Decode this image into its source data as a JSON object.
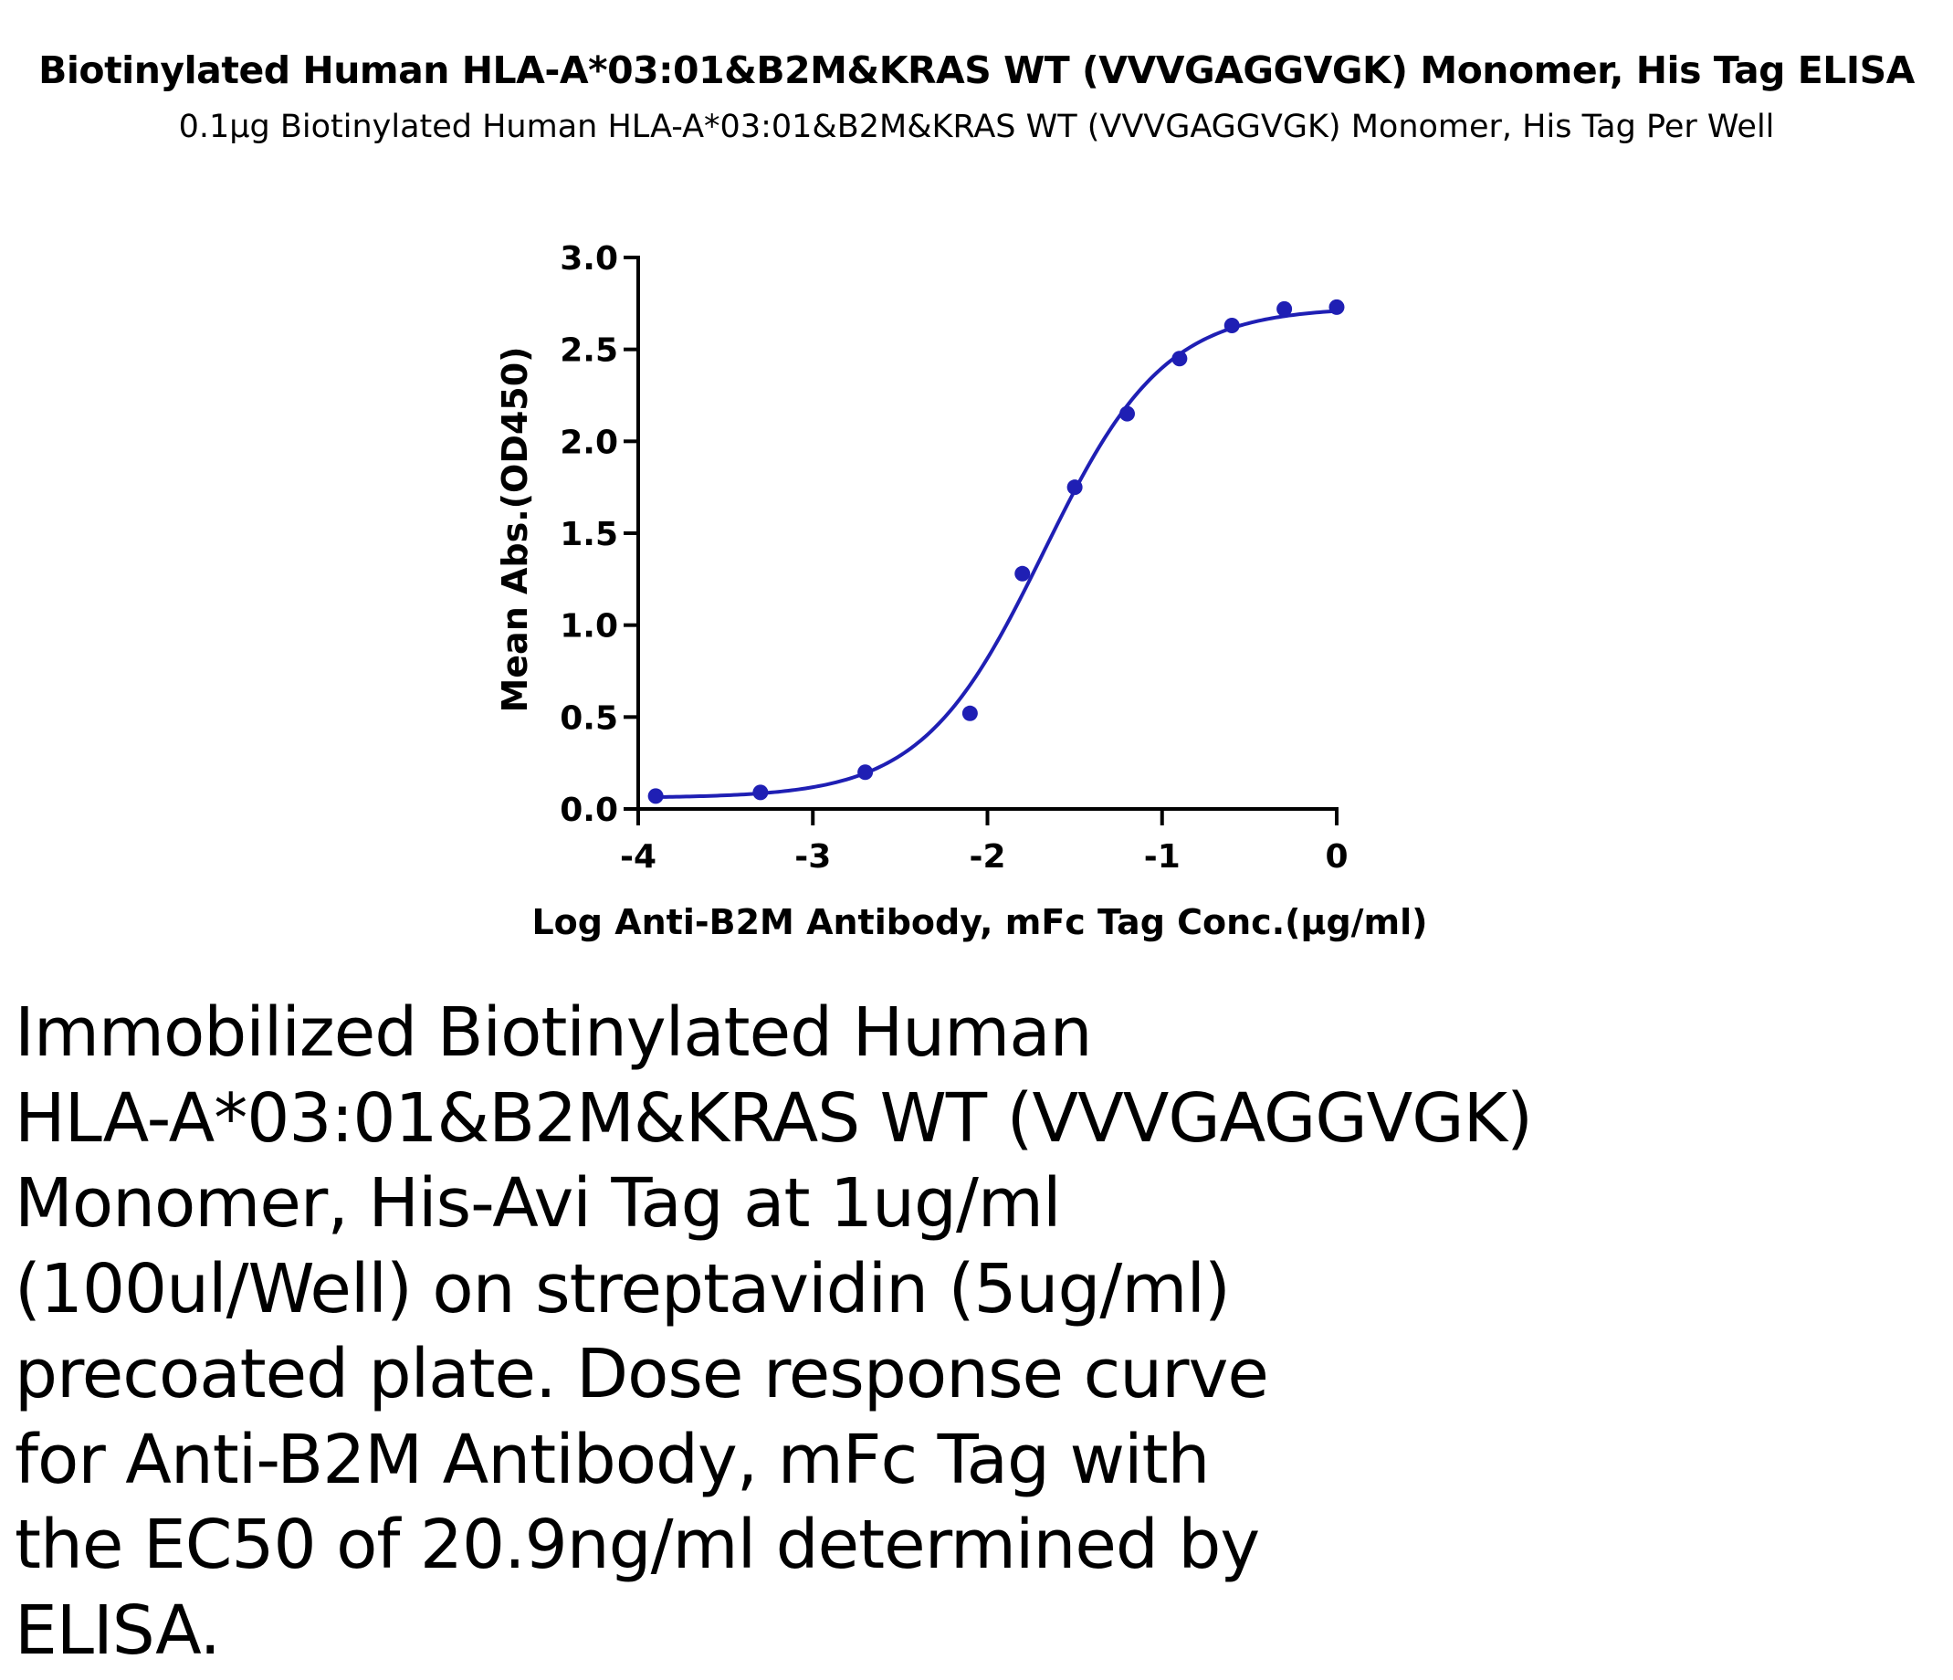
{
  "header": {
    "title": "Biotinylated Human HLA-A*03:01&B2M&KRAS WT (VVVGAGGVGK) Monomer, His Tag ELISA",
    "subtitle": "0.1μg Biotinylated Human HLA-A*03:01&B2M&KRAS WT (VVVGAGGVGK) Monomer, His Tag Per Well"
  },
  "chart_data": {
    "type": "scatter",
    "title": "Biotinylated Human HLA-A*03:01&B2M&KRAS WT (VVVGAGGVGK) Monomer, His Tag ELISA",
    "subtitle": "0.1μg Biotinylated Human HLA-A*03:01&B2M&KRAS WT (VVVGAGGVGK) Monomer, His Tag Per Well",
    "xlabel": "Log Anti-B2M Antibody, mFc Tag Conc.(μg/ml)",
    "ylabel": "Mean Abs.(OD450)",
    "xlim": [
      -4,
      0
    ],
    "ylim": [
      0,
      3.0
    ],
    "x_ticks": [
      "-4",
      "-3",
      "-2",
      "-1",
      "0"
    ],
    "y_ticks": [
      "0.0",
      "0.5",
      "1.0",
      "1.5",
      "2.0",
      "2.5",
      "3.0"
    ],
    "grid": false,
    "legend": "none",
    "series": [
      {
        "x": [
          -3.9,
          -3.3,
          -2.7,
          -2.1,
          -1.8,
          -1.5,
          -1.2,
          -0.9,
          -0.6,
          -0.3,
          0.0
        ],
        "y": [
          0.07,
          0.09,
          0.2,
          0.52,
          1.28,
          1.75,
          2.15,
          2.45,
          2.63,
          2.72,
          2.73
        ],
        "color": "#1f1fb4",
        "fit": "four-parameter logistic",
        "ec50": "20.9ng/ml"
      }
    ]
  },
  "caption": {
    "lines": [
      "Immobilized Biotinylated Human",
      "HLA-A*03:01&B2M&KRAS WT (VVVGAGGVGK)",
      "Monomer, His-Avi Tag at 1ug/ml",
      "(100ul/Well) on streptavidin (5ug/ml)",
      "precoated plate. Dose response curve",
      "for Anti-B2M Antibody, mFc Tag with",
      "the EC50 of 20.9ng/ml determined by",
      "ELISA."
    ]
  }
}
